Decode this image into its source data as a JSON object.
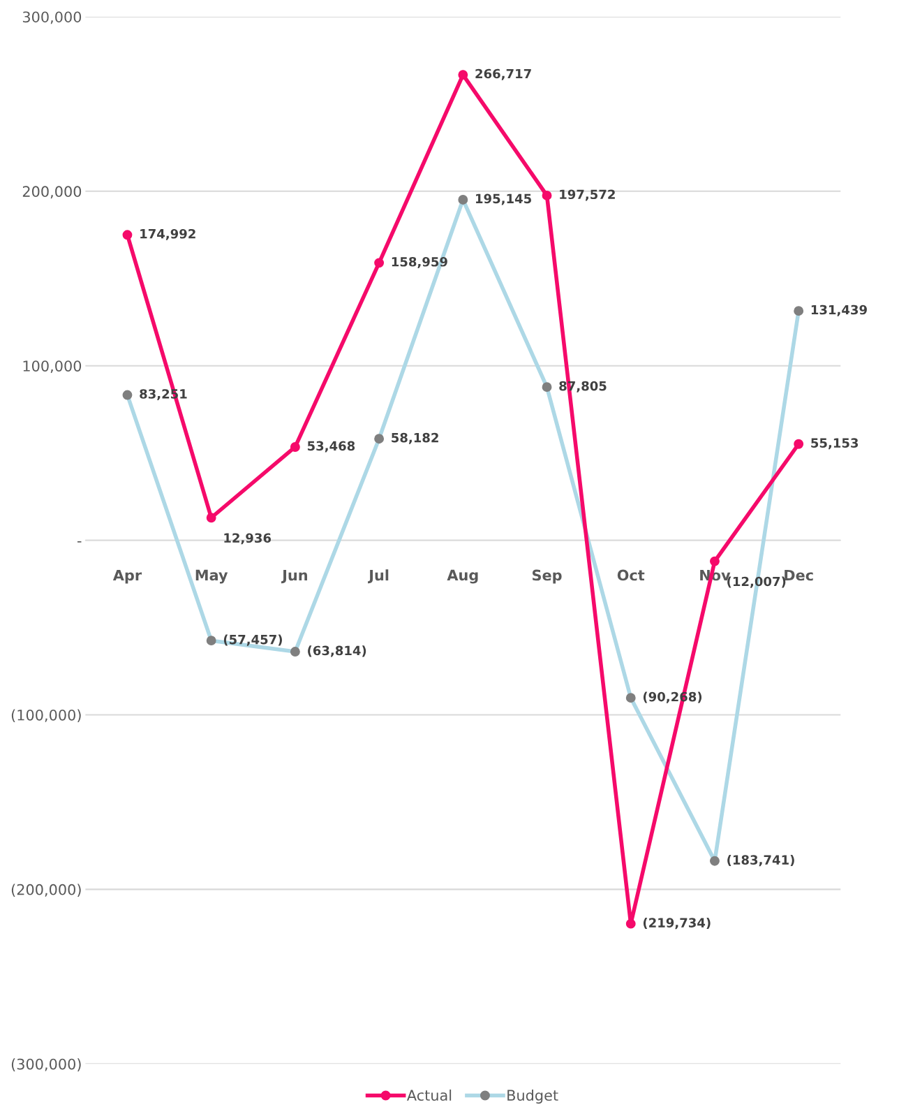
{
  "chart_data": {
    "type": "line",
    "categories": [
      "Apr",
      "May",
      "Jun",
      "Jul",
      "Aug",
      "Sep",
      "Oct",
      "Nov",
      "Dec"
    ],
    "series": [
      {
        "name": "Actual",
        "color": "#f50a6a",
        "marker": "circle",
        "values": [
          174992,
          12936,
          53468,
          158959,
          266717,
          197572,
          -219734,
          -12007,
          55153
        ],
        "value_labels": [
          "174,992",
          "12,936",
          "53,468",
          "158,959",
          "266,717",
          "197,572",
          "(219,734)",
          "(12,007)",
          "55,153"
        ]
      },
      {
        "name": "Budget",
        "color": "#add8e6",
        "marker": "circle",
        "values": [
          83251,
          -57457,
          -63814,
          58182,
          195145,
          87805,
          -90268,
          -183741,
          131439
        ],
        "value_labels": [
          "83,251",
          "(57,457)",
          "(63,814)",
          "58,182",
          "195,145",
          "87,805",
          "(90,268)",
          "(183,741)",
          "131,439"
        ]
      }
    ],
    "ylim": [
      -300000,
      300000
    ],
    "yticks": [
      {
        "value": -300000,
        "label": "(300,000)"
      },
      {
        "value": -200000,
        "label": "(200,000)"
      },
      {
        "value": -100000,
        "label": "(100,000)"
      },
      {
        "value": 0,
        "label": "-"
      },
      {
        "value": 100000,
        "label": "100,000"
      },
      {
        "value": 200000,
        "label": "200,000"
      },
      {
        "value": 300000,
        "label": "300,000"
      }
    ],
    "grid": "y",
    "legend": "bottom"
  }
}
